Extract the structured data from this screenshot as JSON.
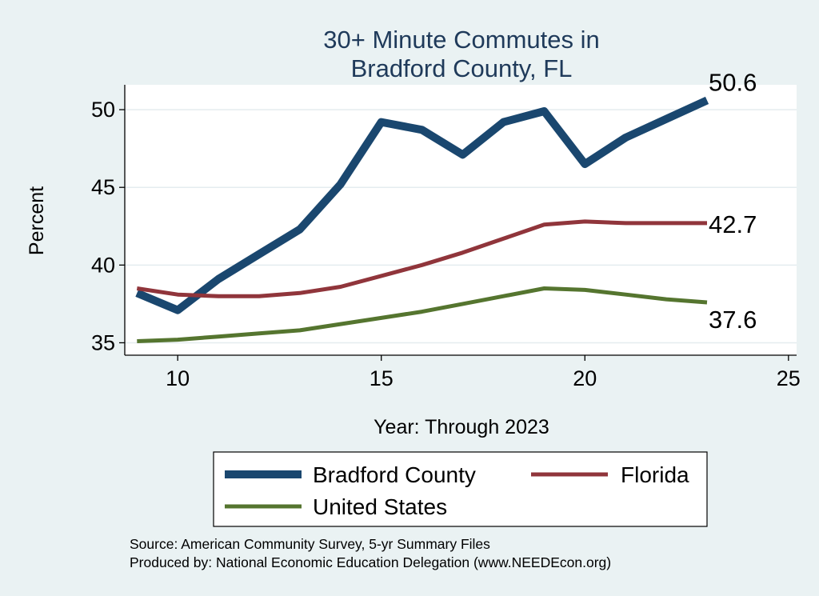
{
  "chart_data": {
    "type": "line",
    "title": [
      "30+ Minute Commutes in",
      "Bradford County, FL"
    ],
    "xlabel": "Year: Through 2023",
    "ylabel": "Percent",
    "xlim": [
      8.7,
      25.2
    ],
    "ylim": [
      34.2,
      51.6
    ],
    "xticks": [
      10,
      15,
      20,
      25
    ],
    "yticks": [
      35,
      40,
      45,
      50
    ],
    "grid": true,
    "series": [
      {
        "name": "Bradford County",
        "color": "#1a476f",
        "x": [
          9,
          10,
          11,
          12,
          13,
          14,
          15,
          16,
          17,
          18,
          19,
          20,
          21,
          22,
          23
        ],
        "values": [
          38.2,
          37.1,
          39.1,
          40.7,
          42.3,
          45.2,
          49.2,
          48.7,
          47.1,
          49.2,
          49.9,
          46.5,
          48.2,
          49.4,
          50.6
        ],
        "end_label": "50.6"
      },
      {
        "name": "Florida",
        "color": "#90353b",
        "x": [
          9,
          10,
          11,
          12,
          13,
          14,
          15,
          16,
          17,
          18,
          19,
          20,
          21,
          22,
          23
        ],
        "values": [
          38.5,
          38.1,
          38.0,
          38.0,
          38.2,
          38.6,
          39.3,
          40.0,
          40.8,
          41.7,
          42.6,
          42.8,
          42.7,
          42.7,
          42.7
        ],
        "end_label": "42.7"
      },
      {
        "name": "United States",
        "color": "#55752f",
        "x": [
          9,
          10,
          11,
          12,
          13,
          14,
          15,
          16,
          17,
          18,
          19,
          20,
          21,
          22,
          23
        ],
        "values": [
          35.1,
          35.2,
          35.4,
          35.6,
          35.8,
          36.2,
          36.6,
          37.0,
          37.5,
          38.0,
          38.5,
          38.4,
          38.1,
          37.8,
          37.6
        ],
        "end_label": "37.6"
      }
    ],
    "legend": {
      "placement": "bottom",
      "entries": [
        "Bradford County",
        "Florida",
        "United States"
      ]
    },
    "notes": [
      "Source: American Community Survey, 5-yr Summary Files",
      "Produced by: National Economic Education Delegation (www.NEEDEcon.org)"
    ]
  }
}
